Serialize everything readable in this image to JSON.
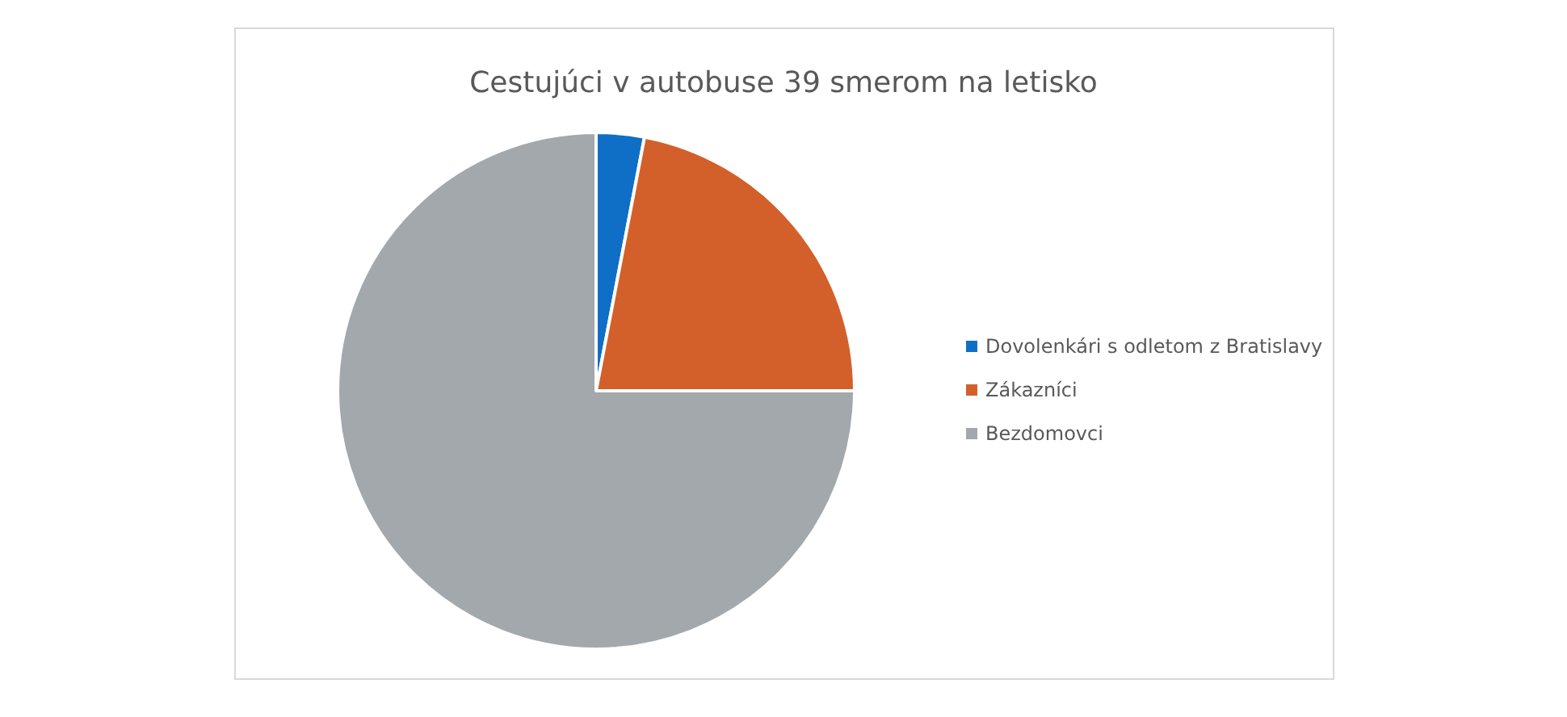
{
  "chart_data": {
    "type": "pie",
    "title": "Cestujúci v autobuse 39 smerom na letisko",
    "categories": [
      "Dovolenkári s odletom z Bratislavy",
      "Zákazníci",
      "Bezdomovci"
    ],
    "values": [
      3,
      22,
      75
    ],
    "colors": [
      "#0f6fc6",
      "#d3602a",
      "#a2a8ab"
    ],
    "legend": "right"
  }
}
